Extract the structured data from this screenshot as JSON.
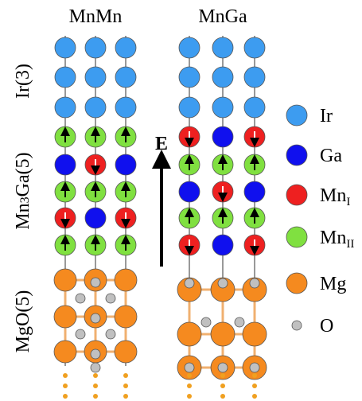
{
  "columns": {
    "left": "MnMn",
    "right": "MnGa"
  },
  "layers": {
    "ir": "Ir(3)",
    "mn3ga": {
      "a": "Mn",
      "sub": "3",
      "b": "Ga(5)"
    },
    "mgo": "MgO(5)"
  },
  "field": "E",
  "legend": [
    {
      "label": "Ir"
    },
    {
      "label": "Ga"
    },
    {
      "label": "Mn",
      "sub": "I"
    },
    {
      "label": "Mn",
      "sub": "II"
    },
    {
      "label": "Mg"
    },
    {
      "label": "O"
    }
  ]
}
